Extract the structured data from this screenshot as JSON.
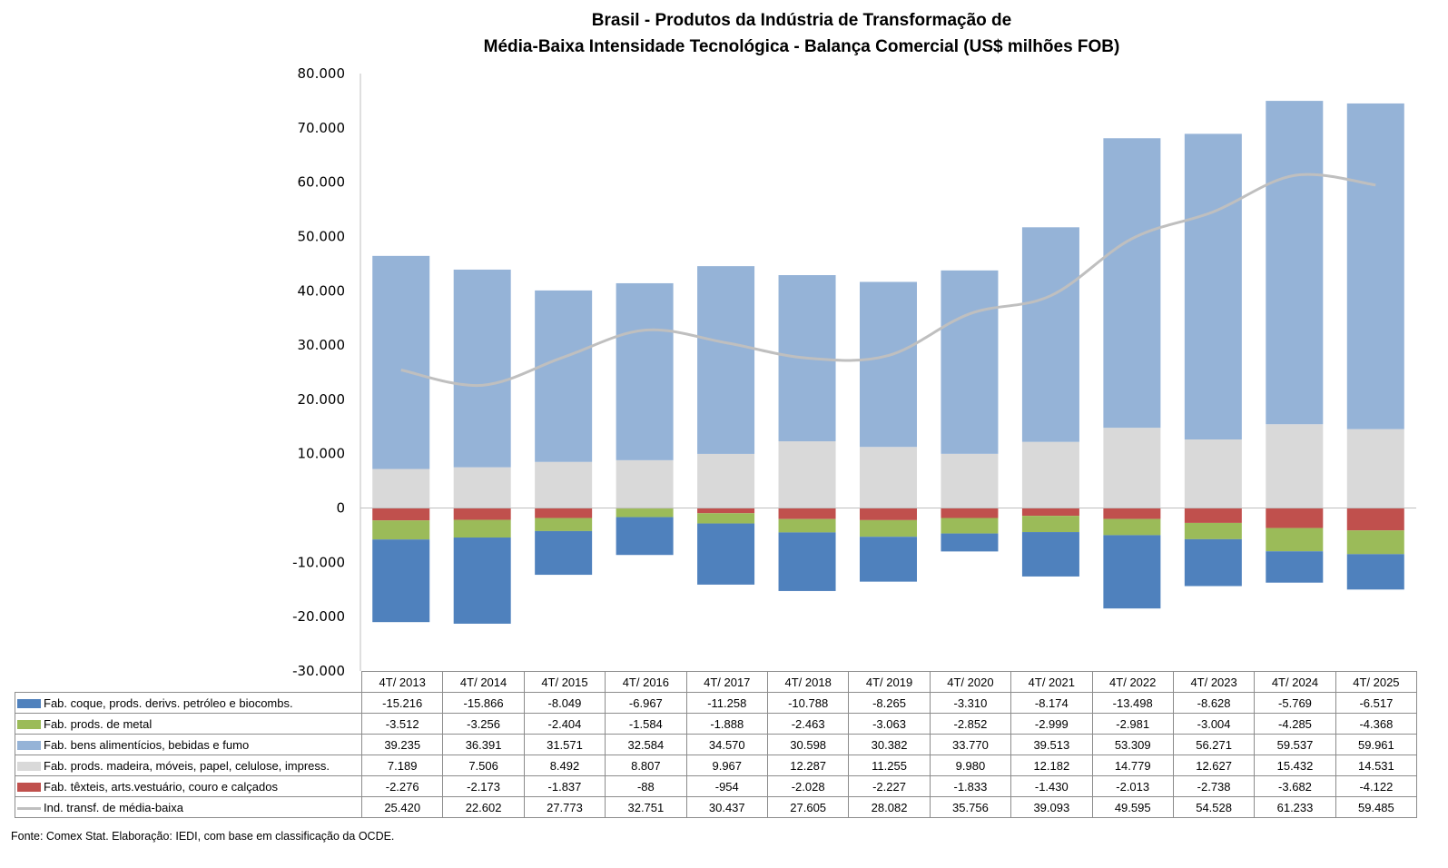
{
  "chart_data": {
    "type": "bar",
    "stacked": true,
    "title_lines": [
      "Brasil - Produtos da Indústria de Transformação de",
      "Média-Baixa Intensidade Tecnológica - Balança Comercial (US$ milhões FOB)"
    ],
    "xlabel": "",
    "ylabel": "",
    "ylim": [
      -30000,
      80000
    ],
    "yticks": [
      80000,
      70000,
      60000,
      50000,
      40000,
      30000,
      20000,
      10000,
      0,
      -10000,
      -20000,
      -30000
    ],
    "ytick_labels": [
      "80.000",
      "70.000",
      "60.000",
      "50.000",
      "40.000",
      "30.000",
      "20.000",
      "10.000",
      "0",
      "-10.000",
      "-20.000",
      "-30.000"
    ],
    "grid": false,
    "legend": "data-table-below",
    "categories": [
      "4T/ 2013",
      "4T/ 2014",
      "4T/ 2015",
      "4T/ 2016",
      "4T/ 2017",
      "4T/ 2018",
      "4T/ 2019",
      "4T/ 2020",
      "4T/ 2021",
      "4T/ 2022",
      "4T/ 2023",
      "4T/ 2024",
      "4T/ 2025"
    ],
    "series": [
      {
        "name": "Fab. coque, prods. derivs. petróleo e biocombs.",
        "kind": "bar",
        "color": "#4f81bd",
        "values": [
          -15216,
          -15866,
          -8049,
          -6967,
          -11258,
          -10788,
          -8265,
          -3310,
          -8174,
          -13498,
          -8628,
          -5769,
          -6517
        ],
        "labels": [
          "-15.216",
          "-15.866",
          "-8.049",
          "-6.967",
          "-11.258",
          "-10.788",
          "-8.265",
          "-3.310",
          "-8.174",
          "-13.498",
          "-8.628",
          "-5.769",
          "-6.517"
        ]
      },
      {
        "name": "Fab. prods. de metal",
        "kind": "bar",
        "color": "#9bbb59",
        "values": [
          -3512,
          -3256,
          -2404,
          -1584,
          -1888,
          -2463,
          -3063,
          -2852,
          -2999,
          -2981,
          -3004,
          -4285,
          -4368
        ],
        "labels": [
          "-3.512",
          "-3.256",
          "-2.404",
          "-1.584",
          "-1.888",
          "-2.463",
          "-3.063",
          "-2.852",
          "-2.999",
          "-2.981",
          "-3.004",
          "-4.285",
          "-4.368"
        ]
      },
      {
        "name": "Fab. bens alimentícios, bebidas e fumo",
        "kind": "bar",
        "color": "#95b3d7",
        "values": [
          39235,
          36391,
          31571,
          32584,
          34570,
          30598,
          30382,
          33770,
          39513,
          53309,
          56271,
          59537,
          59961
        ],
        "labels": [
          "39.235",
          "36.391",
          "31.571",
          "32.584",
          "34.570",
          "30.598",
          "30.382",
          "33.770",
          "39.513",
          "53.309",
          "56.271",
          "59.537",
          "59.961"
        ]
      },
      {
        "name": "Fab. prods. madeira, móveis, papel, celulose, impress.",
        "kind": "bar",
        "color": "#d9d9d9",
        "values": [
          7189,
          7506,
          8492,
          8807,
          9967,
          12287,
          11255,
          9980,
          12182,
          14779,
          12627,
          15432,
          14531
        ],
        "labels": [
          "7.189",
          "7.506",
          "8.492",
          "8.807",
          "9.967",
          "12.287",
          "11.255",
          "9.980",
          "12.182",
          "14.779",
          "12.627",
          "15.432",
          "14.531"
        ]
      },
      {
        "name": "Fab. têxteis, arts.vestuário, couro e calçados",
        "kind": "bar",
        "color": "#c0504d",
        "values": [
          -2276,
          -2173,
          -1837,
          -88,
          -954,
          -2028,
          -2227,
          -1833,
          -1430,
          -2013,
          -2738,
          -3682,
          -4122
        ],
        "labels": [
          "-2.276",
          "-2.173",
          "-1.837",
          "-88",
          "-954",
          "-2.028",
          "-2.227",
          "-1.833",
          "-1.430",
          "-2.013",
          "-2.738",
          "-3.682",
          "-4.122"
        ]
      },
      {
        "name": "Ind. transf. de média-baixa",
        "kind": "line",
        "color": "#bfbfbf",
        "values": [
          25420,
          22602,
          27773,
          32751,
          30437,
          27605,
          28082,
          35756,
          39093,
          49595,
          54528,
          61233,
          59485
        ],
        "labels": [
          "25.420",
          "22.602",
          "27.773",
          "32.751",
          "30.437",
          "27.605",
          "28.082",
          "35.756",
          "39.093",
          "49.595",
          "54.528",
          "61.233",
          "59.485"
        ]
      }
    ],
    "positive_stack_order": [
      3,
      2
    ],
    "negative_stack_order": [
      4,
      1,
      0
    ]
  },
  "footer": "Fonte:  Comex Stat. Elaboração: IEDI, com base em classificação da OCDE."
}
